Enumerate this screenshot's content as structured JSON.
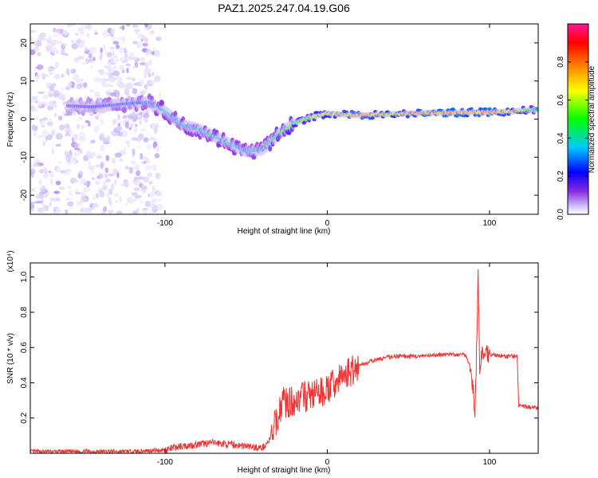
{
  "title": "PAZ1.2025.247.04.19.G06",
  "chart_data": [
    {
      "type": "heatmap",
      "xlabel": "Height of straight line (km)",
      "ylabel": "Frequency (Hz)",
      "xlim": [
        -183,
        130
      ],
      "ylim": [
        -25,
        25
      ],
      "x_ticks": [
        -100,
        0,
        100
      ],
      "y_ticks": [
        -20,
        -10,
        0,
        10,
        20
      ],
      "grid": false,
      "colorbar": {
        "label": "Normalized spectral amplitude",
        "range": [
          0.0,
          1.0
        ],
        "ticks": [
          0.0,
          0.2,
          0.4,
          0.6,
          0.8
        ],
        "colormap": [
          "#ffffff",
          "#c8b4f5",
          "#8a2be2",
          "#0000ff",
          "#00c8ff",
          "#00ff00",
          "#ffff00",
          "#ff8000",
          "#ff0000",
          "#ff1493"
        ]
      },
      "ridge": [
        {
          "x": -160,
          "y": 3.5,
          "amp": 0.3
        },
        {
          "x": -145,
          "y": 3.2,
          "amp": 0.35
        },
        {
          "x": -125,
          "y": 4.0,
          "amp": 0.4
        },
        {
          "x": -110,
          "y": 4.5,
          "amp": 0.45
        },
        {
          "x": -100,
          "y": 2.0,
          "amp": 0.5
        },
        {
          "x": -90,
          "y": -1.5,
          "amp": 0.5
        },
        {
          "x": -80,
          "y": -2.5,
          "amp": 0.5
        },
        {
          "x": -70,
          "y": -4.5,
          "amp": 0.55
        },
        {
          "x": -60,
          "y": -6.5,
          "amp": 0.5
        },
        {
          "x": -50,
          "y": -8.5,
          "amp": 0.45
        },
        {
          "x": -40,
          "y": -8.0,
          "amp": 0.5
        },
        {
          "x": -30,
          "y": -4.0,
          "amp": 0.6
        },
        {
          "x": -20,
          "y": -1.0,
          "amp": 0.6
        },
        {
          "x": -10,
          "y": 0.5,
          "amp": 0.65
        },
        {
          "x": 0,
          "y": 1.5,
          "amp": 0.7
        },
        {
          "x": 10,
          "y": 1.2,
          "amp": 0.8
        },
        {
          "x": 20,
          "y": 1.0,
          "amp": 0.85
        },
        {
          "x": 40,
          "y": 1.3,
          "amp": 0.7
        },
        {
          "x": 60,
          "y": 1.6,
          "amp": 0.85
        },
        {
          "x": 80,
          "y": 1.7,
          "amp": 0.85
        },
        {
          "x": 90,
          "y": 1.8,
          "amp": 0.8
        },
        {
          "x": 100,
          "y": 1.8,
          "amp": 0.85
        },
        {
          "x": 110,
          "y": 1.9,
          "amp": 0.8
        },
        {
          "x": 130,
          "y": 2.5,
          "amp": 0.5
        }
      ]
    },
    {
      "type": "line",
      "xlabel": "Height of straight line (km)",
      "ylabel": "SNR (10 * v/v)",
      "multiplier": "(x10⁴)",
      "xlim": [
        -183,
        130
      ],
      "ylim": [
        0,
        1.08
      ],
      "x_ticks": [
        -100,
        0,
        100
      ],
      "y_ticks": [
        0.2,
        0.4,
        0.6,
        0.8,
        1.0
      ],
      "grid": false,
      "series": [
        {
          "color": "#ee3333",
          "x": [
            -183,
            -160,
            -140,
            -120,
            -100,
            -90,
            -80,
            -70,
            -60,
            -50,
            -40,
            -35,
            -30,
            -27,
            -25,
            -20,
            -15,
            -10,
            -5,
            0,
            5,
            10,
            15,
            20,
            30,
            40,
            50,
            60,
            70,
            80,
            85,
            88,
            90,
            91,
            92,
            93,
            94,
            95,
            100,
            110,
            115,
            117,
            118,
            120,
            125,
            130
          ],
          "y": [
            0.01,
            0.01,
            0.01,
            0.01,
            0.02,
            0.04,
            0.05,
            0.06,
            0.05,
            0.04,
            0.03,
            0.08,
            0.22,
            0.32,
            0.28,
            0.3,
            0.32,
            0.33,
            0.34,
            0.36,
            0.4,
            0.44,
            0.47,
            0.5,
            0.53,
            0.55,
            0.55,
            0.55,
            0.56,
            0.56,
            0.56,
            0.5,
            0.35,
            0.2,
            0.58,
            1.05,
            0.4,
            0.58,
            0.56,
            0.55,
            0.55,
            0.55,
            0.27,
            0.27,
            0.26,
            0.26
          ]
        }
      ]
    }
  ]
}
